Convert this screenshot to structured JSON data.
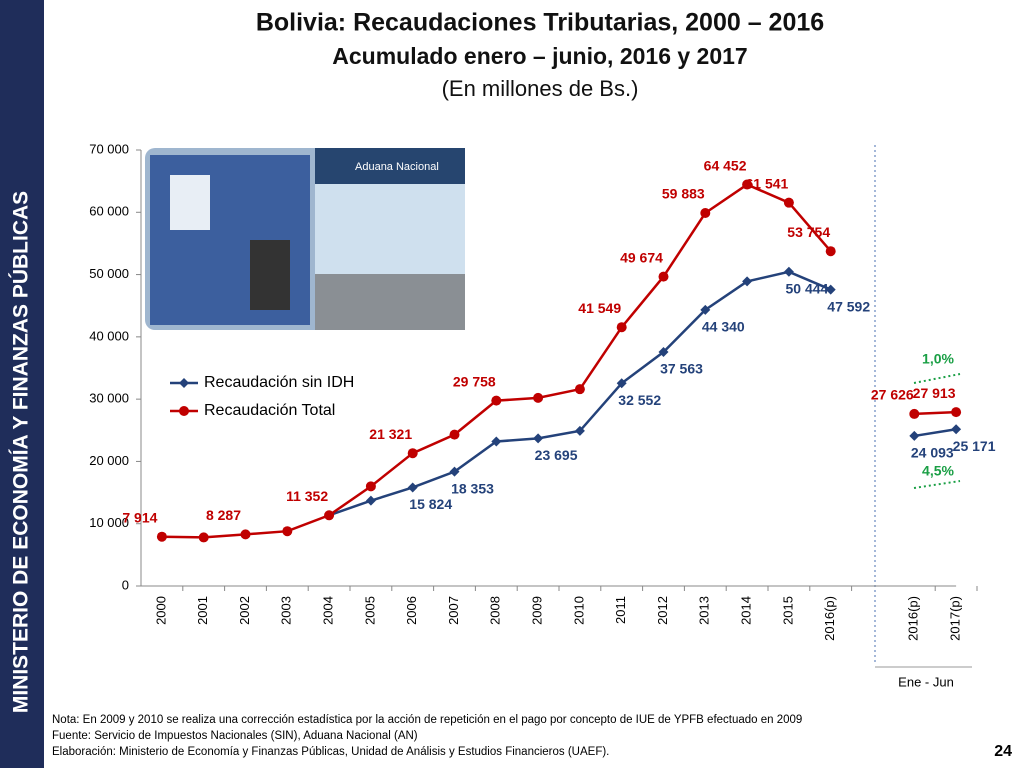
{
  "sidebar": "MINISTERIO DE ECONOMÍA Y FINANZAS PÚBLICAS",
  "page_number": "24",
  "notes": [
    "Nota: En 2009  y 2010 se realiza una corrección estadística por la acción de repetición en el pago por concepto de IUE de YPFB efectuado en 2009",
    "Fuente: Servicio de Impuestos Nacionales (SIN), Aduana Nacional (AN)",
    "Elaboración: Ministerio de Economía y Finanzas Públicas, Unidad de Análisis y Estudios Financieros (UAEF)."
  ],
  "chart_data": {
    "type": "line",
    "title": "Bolivia: Recaudaciones Tributarias, 2000 – 2016",
    "subtitle": "Acumulado enero – junio, 2016 y 2017",
    "units": "(En millones de Bs.)",
    "categories": [
      "2000",
      "2001",
      "2002",
      "2003",
      "2004",
      "2005",
      "2006",
      "2007",
      "2008",
      "2009",
      "2010",
      "2011",
      "2012",
      "2013",
      "2014",
      "2015",
      "2016(p)",
      null,
      "2016(p)",
      "2017(p)"
    ],
    "group_label": "Ene - Jun",
    "ylim": [
      0,
      70000
    ],
    "yticks": [
      0,
      {
        "value": 10000,
        "label": "10 000"
      },
      {
        "value": 20000,
        "label": "20 000"
      },
      {
        "value": 30000,
        "label": "30 000"
      },
      {
        "value": 40000,
        "label": "40 000"
      },
      {
        "value": 50000,
        "label": "50 000"
      },
      {
        "value": 60000,
        "label": "60 000"
      },
      {
        "value": 70000,
        "label": "70 000"
      }
    ],
    "series": [
      {
        "name": "Recaudación sin IDH",
        "color": "#24427a",
        "values": [
          null,
          null,
          null,
          null,
          11352,
          13700,
          15824,
          18353,
          23200,
          23695,
          24900,
          32552,
          37563,
          44340,
          48900,
          50444,
          47592,
          null,
          24093,
          25171
        ],
        "value_labels": [
          null,
          null,
          null,
          null,
          null,
          null,
          "15 824",
          "18 353",
          null,
          "23 695",
          null,
          "32 552",
          "37 563",
          "44 340",
          null,
          "50 444",
          "47 592",
          null,
          "24 093",
          "25 171"
        ]
      },
      {
        "name": "Recaudación Total",
        "color": "#c00000",
        "values": [
          7914,
          7800,
          8287,
          8800,
          11352,
          16000,
          21321,
          24300,
          29758,
          30200,
          31600,
          41549,
          49674,
          59883,
          64452,
          61541,
          53754,
          null,
          27626,
          27913
        ],
        "value_labels": [
          "7 914",
          null,
          "8 287",
          null,
          "11 352",
          null,
          "21 321",
          null,
          "29 758",
          null,
          null,
          "41 549",
          "49 674",
          "59 883",
          "64 452",
          "61 541",
          "53 754",
          null,
          "27 626",
          "27 913"
        ]
      }
    ],
    "annotations": [
      "1,0%",
      "4,5%"
    ],
    "legend": "upper left"
  }
}
